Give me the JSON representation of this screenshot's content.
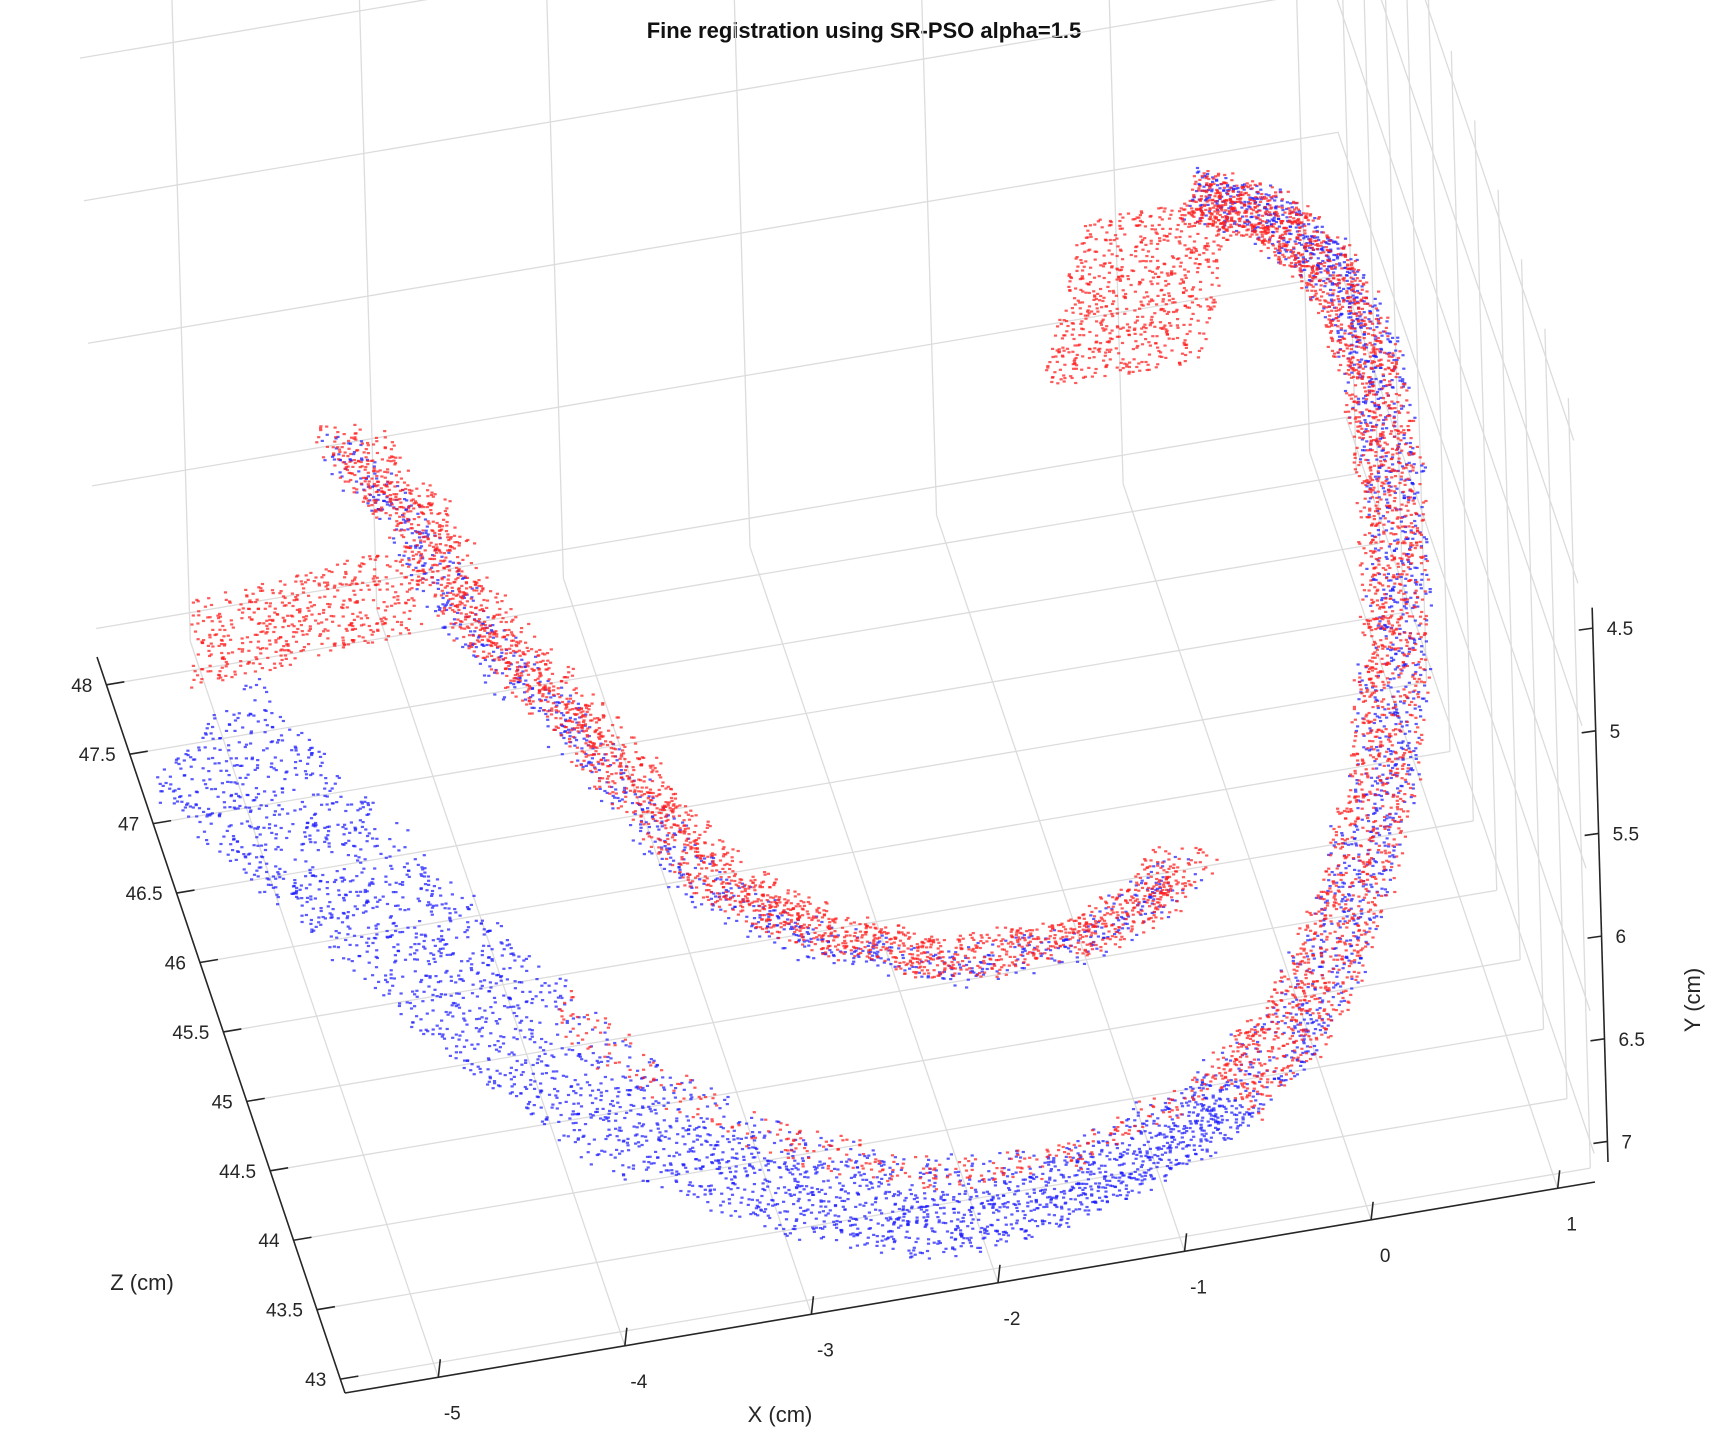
{
  "chart_data": {
    "type": "scatter",
    "title": "Fine registration using SR-PSO alpha=1.5",
    "xlabel": "X (cm)",
    "ylabel": "Y (cm)",
    "zlabel": "Z (cm)",
    "x_ticks": [
      "-5",
      "-4",
      "-3",
      "-2",
      "-1",
      "0",
      "1"
    ],
    "y_ticks": [
      "4.5",
      "5",
      "5.5",
      "6",
      "6.5",
      "7"
    ],
    "z_ticks": [
      "48",
      "47.5",
      "47",
      "46.5",
      "46",
      "45.5",
      "45",
      "44.5",
      "44",
      "43.5",
      "43"
    ],
    "xlim": [
      -5.5,
      1.2
    ],
    "ylim": [
      4.4,
      7.1
    ],
    "zlim": [
      42.9,
      48.2
    ],
    "grid": true,
    "projection": "3d",
    "series": [
      {
        "color": "#1a1aff"
      },
      {
        "color": "#ff1a1a"
      }
    ]
  }
}
